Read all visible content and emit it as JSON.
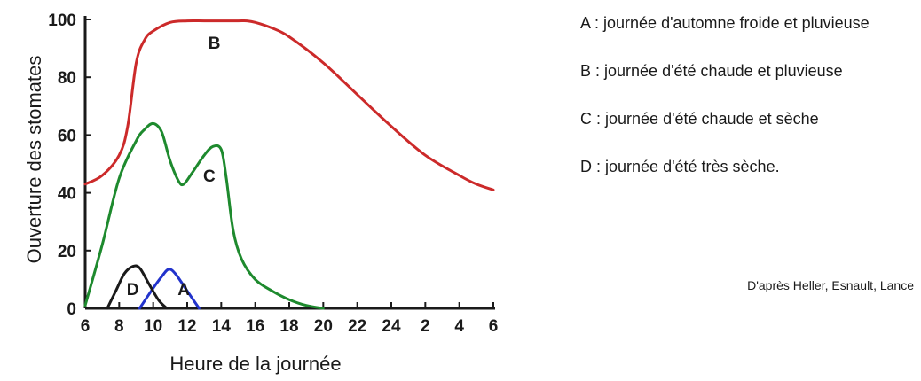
{
  "chart_data": {
    "type": "line",
    "xlabel": "Heure de la journée",
    "ylabel": "Ouverture des stomates",
    "ylim": [
      0,
      100
    ],
    "yticks": [
      "0",
      "20",
      "40",
      "60",
      "80",
      "100"
    ],
    "xticks": [
      "6",
      "8",
      "10",
      "12",
      "14",
      "16",
      "18",
      "20",
      "22",
      "24",
      "2",
      "4",
      "6"
    ],
    "x_unit": "hour (continuous, 6h → 6h next day)",
    "series": [
      {
        "name": "A",
        "color": "#2233cc",
        "x": [
          9.2,
          10.0,
          10.5,
          10.9,
          11.3,
          12.0,
          12.7
        ],
        "y": [
          0,
          7,
          11,
          13.5,
          12,
          6,
          0
        ]
      },
      {
        "name": "B",
        "color": "#cc2a2a",
        "x": [
          6,
          7,
          8,
          8.5,
          9,
          9.5,
          10,
          11,
          12,
          13,
          14,
          15,
          15.5,
          16,
          17,
          18,
          20,
          22,
          24,
          26,
          28,
          29,
          30
        ],
        "y": [
          43,
          46,
          53,
          63,
          85,
          93,
          96,
          99,
          99.5,
          99.5,
          99.5,
          99.5,
          99.5,
          99,
          97,
          94,
          85,
          74,
          63,
          53,
          46,
          43,
          41
        ]
      },
      {
        "name": "C",
        "color": "#1e8a2e",
        "x": [
          6,
          7,
          8,
          9,
          9.5,
          10,
          10.5,
          11,
          11.5,
          11.8,
          12.3,
          13,
          13.5,
          14,
          14.3,
          14.7,
          15.2,
          16,
          17,
          18,
          19,
          20
        ],
        "y": [
          1,
          22,
          45,
          58,
          62,
          64,
          61,
          51,
          44,
          43,
          47,
          53,
          56,
          55,
          45,
          27,
          17,
          10,
          6,
          3,
          1,
          0
        ]
      },
      {
        "name": "D",
        "color": "#1a1a1a",
        "x": [
          7.3,
          7.8,
          8.3,
          8.8,
          9.2,
          9.7,
          10.3,
          10.8
        ],
        "y": [
          0,
          6,
          12,
          14.5,
          14,
          9,
          3,
          0
        ]
      }
    ],
    "annotations": [
      {
        "text": "A",
        "x": 11.8,
        "y": 6.7
      },
      {
        "text": "B",
        "x": 13.6,
        "y": 92
      },
      {
        "text": "C",
        "x": 13.3,
        "y": 46
      },
      {
        "text": "D",
        "x": 8.8,
        "y": 6.7
      }
    ]
  },
  "legend": [
    {
      "key": "A : ",
      "text": "journée d'automne froide et pluvieuse"
    },
    {
      "key": "B : ",
      "text": "journée d'été chaude et pluvieuse"
    },
    {
      "key": "C : ",
      "text": "journée d'été chaude et sèche"
    },
    {
      "key": "D : ",
      "text": "journée d'été très sèche."
    }
  ],
  "source": "D'après Heller, Esnault, Lance"
}
